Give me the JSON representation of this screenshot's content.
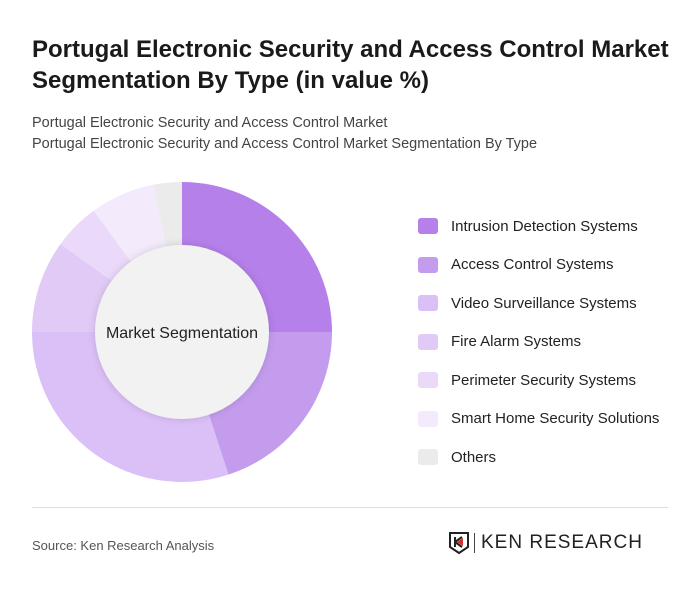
{
  "title": "Portugal Electronic Security and Access Control Market Segmentation By Type (in value %)",
  "subtitle1": "Portugal Electronic Security and Access Control Market",
  "subtitle2": "Portugal Electronic Security and Access Control Market Segmentation By Type",
  "chart_data": {
    "type": "pie",
    "variant": "donut",
    "center_label": "Market Segmentation",
    "legend_position": "right",
    "categories": [
      "Intrusion Detection Systems",
      "Access Control Systems",
      "Video Surveillance Systems",
      "Fire Alarm Systems",
      "Perimeter Security Systems",
      "Smart Home Security Solutions",
      "Others"
    ],
    "values": [
      25,
      20,
      30,
      10,
      5,
      7,
      3
    ],
    "colors": [
      "#b580ea",
      "#c49cee",
      "#dbc0f7",
      "#e1cbf6",
      "#ead9f9",
      "#f3ebfc",
      "#ebebeb"
    ]
  },
  "source": "Source: Ken Research Analysis",
  "logo_text": "KEN RESEARCH"
}
